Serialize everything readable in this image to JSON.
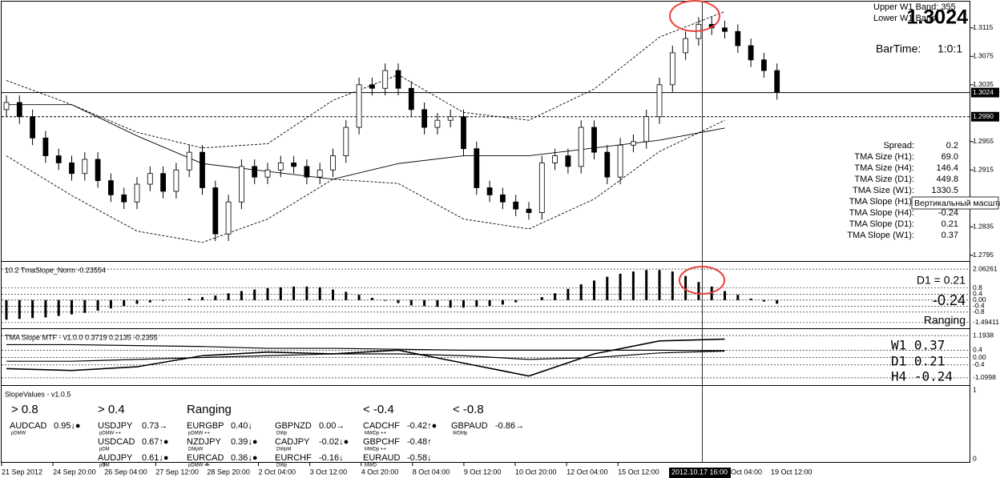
{
  "header": {
    "upper_band": "Upper W1 Band: 355",
    "lower_band": "Lower W1 Band:",
    "price": "1.3024",
    "bar_time_label": "BarTime:",
    "bar_time": "1:0:1"
  },
  "stats": [
    {
      "label": "Spread:",
      "value": "0.2"
    },
    {
      "label": "TMA Size (H1):",
      "value": "69.0"
    },
    {
      "label": "TMA Size (H4):",
      "value": "146.4"
    },
    {
      "label": "TMA Size (D1):",
      "value": "449.8"
    },
    {
      "label": "TMA Size (W1):",
      "value": "1330.5"
    },
    {
      "label": "TMA Slope (H1):"
    },
    {
      "label": "TMA Slope (H4):",
      "value": "-0.24"
    },
    {
      "label": "TMA Slope (D1):",
      "value": "0.21"
    },
    {
      "label": "TMA Slope (W1):",
      "value": "0.37"
    }
  ],
  "tooltip": "Вертикальный масштаб",
  "chart_data": [
    {
      "type": "candlestick",
      "open": [
        1.3,
        1.301,
        1.299,
        1.296,
        1.2935,
        1.2925,
        1.291,
        1.293,
        1.29,
        1.288,
        1.287,
        1.2895,
        1.291,
        1.2885,
        1.2915,
        1.294,
        1.289,
        1.2825,
        1.287,
        1.292,
        1.2905,
        1.2915,
        1.2925,
        1.292,
        1.2905,
        1.2915,
        1.2935,
        1.2975,
        1.3035,
        1.303,
        1.3055,
        1.303,
        1.3,
        1.2975,
        1.2985,
        1.299,
        1.2945,
        1.289,
        1.288,
        1.287,
        1.286,
        1.2855,
        1.2925,
        1.2935,
        1.292,
        1.2975,
        1.294,
        1.2905,
        1.295,
        1.2955,
        1.299,
        1.3035,
        1.308,
        1.31,
        1.312,
        1.3115,
        1.311,
        1.309,
        1.307,
        1.3055
      ],
      "high": [
        1.302,
        1.302,
        1.3,
        1.297,
        1.2945,
        1.2935,
        1.294,
        1.294,
        1.291,
        1.289,
        1.2905,
        1.292,
        1.292,
        1.2925,
        1.295,
        1.295,
        1.29,
        1.288,
        1.293,
        1.293,
        1.2925,
        1.2935,
        1.2935,
        1.293,
        1.2925,
        1.2945,
        1.2985,
        1.3045,
        1.3045,
        1.3065,
        1.3065,
        1.304,
        1.301,
        1.2995,
        1.3,
        1.3,
        1.2955,
        1.29,
        1.289,
        1.288,
        1.287,
        1.2935,
        1.2945,
        1.2945,
        1.2985,
        1.2985,
        1.295,
        1.296,
        1.2965,
        1.3,
        1.3045,
        1.309,
        1.311,
        1.313,
        1.313,
        1.3125,
        1.312,
        1.31,
        1.308,
        1.3065
      ],
      "low": [
        1.299,
        1.298,
        1.295,
        1.2925,
        1.2915,
        1.29,
        1.29,
        1.289,
        1.287,
        1.286,
        1.286,
        1.2885,
        1.2875,
        1.2875,
        1.2905,
        1.288,
        1.2815,
        1.2815,
        1.286,
        1.2895,
        1.2895,
        1.2905,
        1.291,
        1.2895,
        1.2895,
        1.2905,
        1.2925,
        1.2965,
        1.302,
        1.302,
        1.302,
        1.299,
        1.2965,
        1.2965,
        1.2975,
        1.2935,
        1.288,
        1.287,
        1.286,
        1.285,
        1.2845,
        1.2845,
        1.2915,
        1.291,
        1.291,
        1.293,
        1.2895,
        1.2895,
        1.294,
        1.2945,
        1.298,
        1.3025,
        1.307,
        1.309,
        1.3105,
        1.31,
        1.308,
        1.306,
        1.3045,
        1.3014
      ],
      "close": [
        1.301,
        1.299,
        1.296,
        1.2935,
        1.2925,
        1.291,
        1.293,
        1.29,
        1.288,
        1.287,
        1.2895,
        1.291,
        1.2885,
        1.2915,
        1.294,
        1.289,
        1.2825,
        1.287,
        1.292,
        1.2905,
        1.2915,
        1.2925,
        1.292,
        1.2905,
        1.2915,
        1.2935,
        1.2975,
        1.3035,
        1.303,
        1.3055,
        1.303,
        1.3,
        1.2975,
        1.2985,
        1.299,
        1.2945,
        1.289,
        1.288,
        1.287,
        1.286,
        1.2855,
        1.2925,
        1.2935,
        1.292,
        1.2975,
        1.294,
        1.2905,
        1.295,
        1.2955,
        1.299,
        1.3035,
        1.308,
        1.31,
        1.312,
        1.3115,
        1.311,
        1.309,
        1.307,
        1.3055,
        1.3024
      ],
      "bands": [
        {
          "style": "dashed",
          "values": [
            1.3041,
            1.3007,
            1.2968,
            1.2946,
            1.2952,
            1.3013,
            1.3049,
            1.2996,
            1.2985,
            1.3029,
            1.3102,
            1.3138
          ]
        },
        {
          "style": "solid",
          "values": [
            1.3007,
            1.3007,
            1.2963,
            1.2924,
            1.2913,
            1.2902,
            1.2924,
            1.2935,
            1.2935,
            1.2946,
            1.2957,
            1.2974
          ]
        },
        {
          "style": "dashed",
          "values": [
            1.2935,
            1.2879,
            1.2829,
            1.2813,
            1.2846,
            1.2902,
            1.2896,
            1.2846,
            1.2832,
            1.2874,
            1.2941,
            1.2985
          ]
        }
      ],
      "price_line": {
        "value": 1.3024,
        "label": "1.3024"
      },
      "level_line": {
        "value": 1.299,
        "label": "1.2990"
      },
      "ylim": [
        1.2788,
        1.3152
      ],
      "yticks": [
        1.3115,
        1.3075,
        1.3035,
        1.2955,
        1.2915,
        1.2835,
        1.2795
      ]
    },
    {
      "type": "bar",
      "title": "10.2 TmaSlope_Norm -0.23554",
      "values": [
        -1.3,
        -1.25,
        -1.2,
        -1.15,
        -1.05,
        -0.95,
        -0.85,
        -0.7,
        -0.55,
        -0.4,
        -0.25,
        -0.15,
        -0.05,
        0.0,
        0.1,
        0.2,
        0.3,
        0.45,
        0.6,
        0.7,
        0.8,
        0.85,
        0.9,
        0.9,
        0.85,
        0.7,
        0.55,
        0.35,
        0.15,
        -0.05,
        -0.2,
        -0.35,
        -0.4,
        -0.45,
        -0.5,
        -0.5,
        -0.45,
        -0.4,
        -0.3,
        -0.15,
        0.0,
        0.2,
        0.45,
        0.75,
        1.05,
        1.3,
        1.55,
        1.75,
        1.9,
        2.0,
        2.0,
        1.9,
        1.6,
        1.2,
        0.9,
        0.6,
        0.35,
        0.1,
        -0.1,
        -0.24
      ],
      "annotations": [
        "D1 = 0.21",
        "-0.24",
        "Ranging"
      ],
      "ylim": [
        -1.82,
        2.49
      ],
      "yticks": [
        2.06261,
        0.8,
        0.4,
        {
          "value": 0,
          "label": "0.00"
        },
        -0.4,
        -0.8,
        -1.49411
      ],
      "grid": true
    },
    {
      "type": "line",
      "title": "TMA Slope MTF - v1.0.0 0.3719 0.2135 -0.2355",
      "series": [
        {
          "width": 1.6,
          "values": [
            -0.6,
            -0.7,
            -0.5,
            0.1,
            0.3,
            0.2,
            0.4,
            -0.3,
            -1.0,
            0.2,
            0.9,
            1.0
          ]
        },
        {
          "width": 1.2,
          "values": [
            -0.2,
            -0.2,
            -0.1,
            0.0,
            0.1,
            0.2,
            0.2,
            0.1,
            -0.1,
            0.0,
            0.25,
            0.35
          ]
        },
        {
          "width": 1.2,
          "values": [
            0.7,
            0.7,
            0.65,
            0.6,
            0.5,
            0.5,
            0.45,
            0.4,
            0.4,
            0.4,
            0.4,
            0.37
          ]
        }
      ],
      "annotations": [
        "W1  0.37",
        "D1  0.21",
        "H4 -0.24"
      ],
      "ylim": [
        -1.45,
        1.5
      ],
      "yticks": [
        1.1938,
        0.4,
        {
          "value": 0,
          "label": "0.00"
        },
        -0.4,
        -1.0998
      ],
      "grid": true
    }
  ],
  "slope_values": {
    "title": "SlopeValues - v1.0.5",
    "headers": [
      "> 0.8",
      "> 0.4",
      "Ranging",
      "< -0.4",
      "< -0.8"
    ],
    "columns": [
      [
        {
          "pair": "AUDCAD",
          "value": "0.95",
          "arrow": "↓●",
          "tag": "pDMW"
        }
      ],
      [
        {
          "pair": "USDJPY",
          "value": "0.73",
          "arrow": "→",
          "tag": "pDMW ++"
        },
        {
          "pair": "USDCAD",
          "value": "0.67",
          "arrow": "↑●",
          "tag": "pDM"
        },
        {
          "pair": "AUDJPY",
          "value": "0.61",
          "arrow": "↓●",
          "tag": "pDM"
        }
      ],
      [
        {
          "pair": "EURGBP",
          "value": "0.40",
          "arrow": "↓",
          "tag": "pDMW ++"
        },
        {
          "pair": "NZDJPY",
          "value": "0.39",
          "arrow": "↓●",
          "tag": "DMpW"
        },
        {
          "pair": "EURCAD",
          "value": "0.36",
          "arrow": "↓●",
          "tag": "pDMW ++"
        }
      ],
      [
        {
          "pair": "GBPNZD",
          "value": "0.00",
          "arrow": "→",
          "tag": "DWp"
        },
        {
          "pair": "CADJPY",
          "value": "-0.02",
          "arrow": "↓●",
          "tag": "DWpM"
        },
        {
          "pair": "EURCHF",
          "value": "-0.16",
          "arrow": "↓",
          "tag": "DWp"
        }
      ],
      [
        {
          "pair": "CADCHF",
          "value": "-0.42",
          "arrow": "↑●",
          "tag": "MWDp ++"
        },
        {
          "pair": "GBPCHF",
          "value": "-0.48",
          "arrow": "↑",
          "tag": "MWDp ++"
        },
        {
          "pair": "EURAUD",
          "value": "-0.58",
          "arrow": "↓",
          "tag": "MWD"
        }
      ],
      [
        {
          "pair": "GBPAUD",
          "value": "-0.86",
          "arrow": "→",
          "tag": "WDMp"
        }
      ]
    ],
    "axis": [
      "1",
      "0"
    ]
  },
  "dates": [
    "21 Sep 2012",
    "24 Sep 20:00",
    "26 Sep 04:00",
    "27 Sep 12:00",
    "28 Sep 20:00",
    "2 Oct 04:00",
    "3 Oct 12:00",
    "4 Oct 20:00",
    "8 Oct 04:00",
    "9 Oct 12:00",
    "10 Oct 20:00",
    "12 Oct 04:00",
    "15 Oct 12:00"
  ],
  "dates_tail": {
    "partial": "Oct 04:00",
    "last": "19 Oct 12:00",
    "cursor": "2012.10.17 16:00"
  }
}
